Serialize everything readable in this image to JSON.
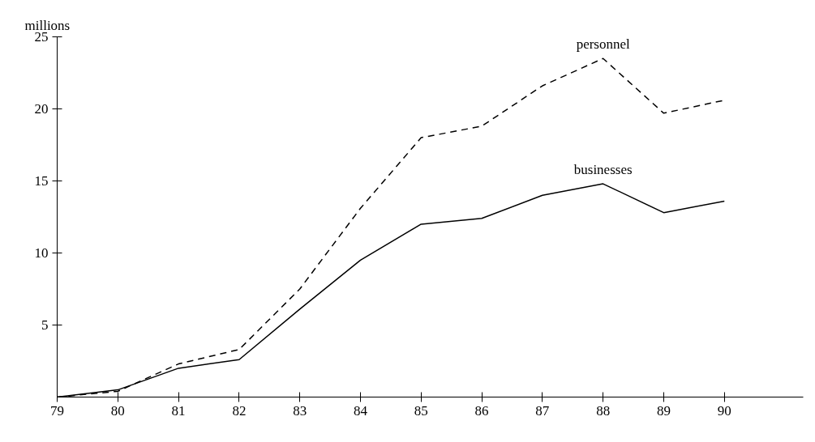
{
  "chart_data": {
    "type": "line",
    "ylabel": "millions",
    "x": [
      79,
      80,
      81,
      82,
      83,
      84,
      85,
      86,
      87,
      88,
      89,
      90
    ],
    "xlim": [
      79,
      91.3
    ],
    "xticks": [
      79,
      80,
      81,
      82,
      83,
      84,
      85,
      86,
      87,
      88,
      89,
      90
    ],
    "ylim": [
      0,
      25
    ],
    "yticks": [
      5,
      10,
      15,
      20,
      25
    ],
    "grid": false,
    "series": [
      {
        "name": "personnel",
        "color": "#000000",
        "line_style": "dashed",
        "values": [
          0,
          0.4,
          2.3,
          3.3,
          7.5,
          13.1,
          18.0,
          18.8,
          21.6,
          23.5,
          19.7,
          20.6
        ]
      },
      {
        "name": "businesses",
        "color": "#000000",
        "line_style": "solid",
        "values": [
          0,
          0.5,
          2.0,
          2.6,
          6.1,
          9.5,
          12.0,
          12.4,
          14.0,
          14.8,
          12.8,
          13.6
        ]
      }
    ]
  }
}
